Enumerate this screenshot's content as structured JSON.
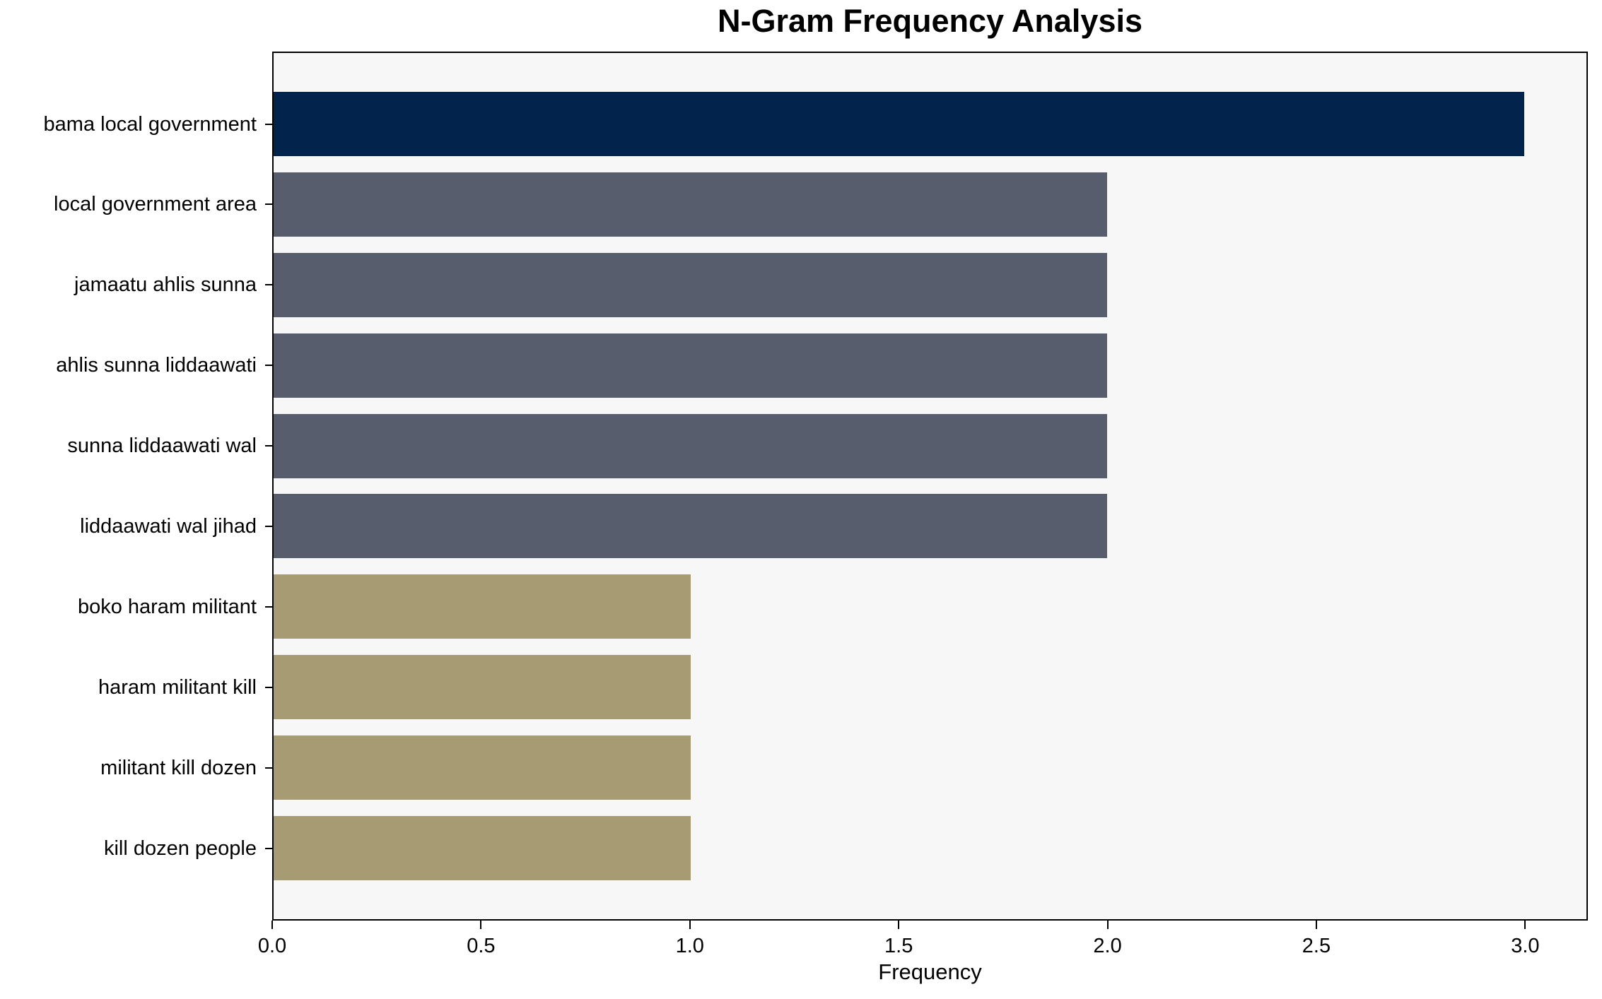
{
  "chart_data": {
    "type": "bar",
    "orientation": "horizontal",
    "title": "N-Gram Frequency Analysis",
    "xlabel": "Frequency",
    "ylabel": "",
    "categories": [
      "bama local government",
      "local government area",
      "jamaatu ahlis sunna",
      "ahlis sunna liddaawati",
      "sunna liddaawati wal",
      "liddaawati wal jihad",
      "boko haram militant",
      "haram militant kill",
      "militant kill dozen",
      "kill dozen people"
    ],
    "values": [
      3,
      2,
      2,
      2,
      2,
      2,
      1,
      1,
      1,
      1
    ],
    "bar_colors": [
      "#02234B",
      "#575D6C",
      "#575D6C",
      "#575D6C",
      "#575D6C",
      "#575D6C",
      "#A69B72",
      "#A69B72",
      "#A69B72",
      "#A69B72"
    ],
    "xlim": [
      0,
      3.15
    ],
    "xticks": [
      0,
      0.5,
      1,
      1.5,
      2,
      2.5,
      3
    ],
    "xtick_labels": [
      "0.0",
      "0.5",
      "1.0",
      "1.5",
      "2.0",
      "2.5",
      "3.0"
    ],
    "grid": false,
    "legend": null,
    "plot_background": "#F7F7F8",
    "figure_background": "#FFFFFF"
  }
}
